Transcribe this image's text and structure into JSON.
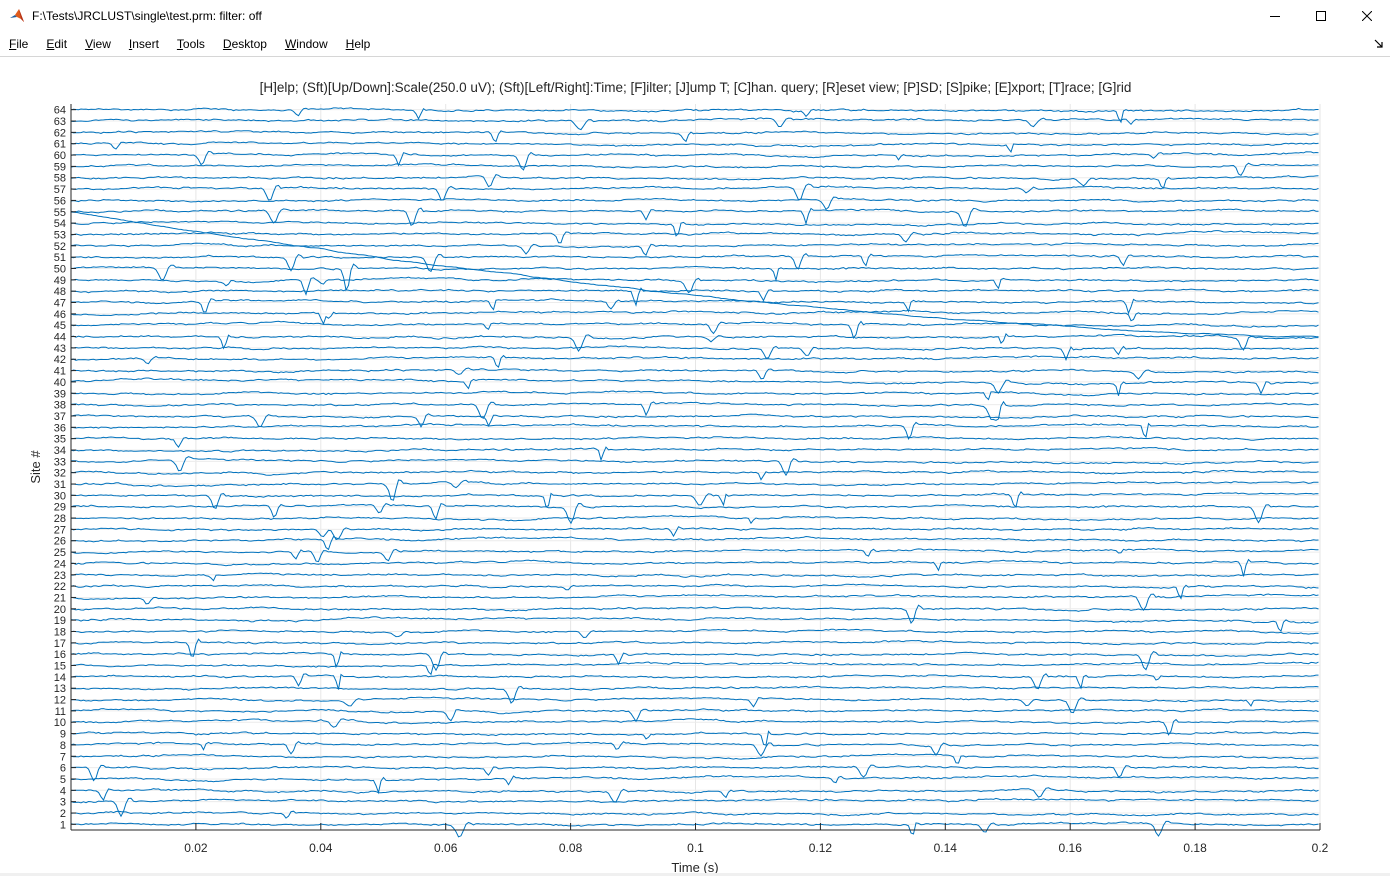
{
  "window": {
    "title": "F:\\Tests\\JRCLUST\\single\\test.prm: filter: off"
  },
  "menu": [
    "File",
    "Edit",
    "View",
    "Insert",
    "Tools",
    "Desktop",
    "Window",
    "Help"
  ],
  "menu_mnemonic_index": [
    0,
    0,
    0,
    0,
    0,
    0,
    0,
    0
  ],
  "plot": {
    "title": "[H]elp; (Sft)[Up/Down]:Scale(250.0 uV); (Sft)[Left/Right]:Time; [F]ilter; [J]ump T; [C]han. query; [R]eset view; [P]SD; [S]pike; [E]xport; [T]race; [G]rid",
    "trace_color": "#0072BD"
  },
  "chart_data": {
    "type": "line",
    "title": "[H]elp; (Sft)[Up/Down]:Scale(250.0 uV); (Sft)[Left/Right]:Time; [F]ilter; [J]ump T; [C]han. query; [R]eset view; [P]SD; [S]pike; [E]xport; [T]race; [G]rid",
    "xlabel": "Time (s)",
    "ylabel": "Site #",
    "xlim": [
      0,
      0.2
    ],
    "ylim": [
      0.5,
      64.5
    ],
    "xticks": [
      "0.02",
      "0.04",
      "0.06",
      "0.08",
      "0.1",
      "0.12",
      "0.14",
      "0.16",
      "0.18",
      "0.2"
    ],
    "xtick_values": [
      0.02,
      0.04,
      0.06,
      0.08,
      0.1,
      0.12,
      0.14,
      0.16,
      0.18,
      0.2
    ],
    "yticks": [
      "1",
      "2",
      "3",
      "4",
      "5",
      "6",
      "7",
      "8",
      "9",
      "10",
      "11",
      "12",
      "13",
      "14",
      "15",
      "16",
      "17",
      "18",
      "19",
      "20",
      "21",
      "22",
      "23",
      "24",
      "25",
      "26",
      "27",
      "28",
      "29",
      "30",
      "31",
      "32",
      "33",
      "34",
      "35",
      "36",
      "37",
      "38",
      "39",
      "40",
      "41",
      "42",
      "43",
      "44",
      "45",
      "46",
      "47",
      "48",
      "49",
      "50",
      "51",
      "52",
      "53",
      "54",
      "55",
      "56",
      "57",
      "58",
      "59",
      "60",
      "61",
      "62",
      "63",
      "64"
    ],
    "grid": true,
    "series_count": 64,
    "drift_trace": {
      "site_start": 55,
      "site_end": 44,
      "t_start": 0,
      "t_end": 0.2
    }
  }
}
